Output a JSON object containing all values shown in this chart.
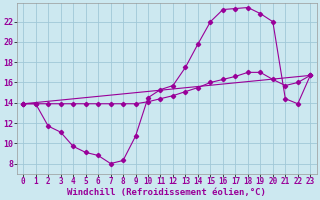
{
  "background_color": "#cce8f0",
  "grid_color": "#a0c8d8",
  "line_color": "#990099",
  "xlabel": "Windchill (Refroidissement éolien,°C)",
  "xlabel_fontsize": 6.5,
  "xtick_fontsize": 5.5,
  "ytick_fontsize": 6,
  "xlim": [
    -0.5,
    23.5
  ],
  "ylim": [
    7.0,
    23.8
  ],
  "yticks": [
    8,
    10,
    12,
    14,
    16,
    18,
    20,
    22
  ],
  "xticks": [
    0,
    1,
    2,
    3,
    4,
    5,
    6,
    7,
    8,
    9,
    10,
    11,
    12,
    13,
    14,
    15,
    16,
    17,
    18,
    19,
    20,
    21,
    22,
    23
  ],
  "line1_x": [
    0,
    1,
    2,
    3,
    4,
    5,
    6,
    7,
    8,
    9,
    10,
    11,
    12,
    13,
    14,
    15,
    16,
    17,
    18,
    19,
    20,
    21,
    22,
    23
  ],
  "line1_y": [
    13.9,
    13.9,
    11.7,
    11.1,
    9.7,
    9.1,
    8.8,
    8.0,
    8.3,
    10.7,
    14.5,
    15.3,
    15.7,
    17.5,
    19.8,
    22.0,
    23.2,
    23.3,
    23.4,
    22.8,
    22.0,
    14.4,
    13.9,
    16.7
  ],
  "line2_x": [
    0,
    1,
    2,
    3,
    4,
    5,
    6,
    7,
    8,
    9,
    10,
    11,
    12,
    13,
    14,
    15,
    16,
    17,
    18,
    19,
    20,
    21,
    22,
    23
  ],
  "line2_y": [
    13.9,
    13.9,
    13.9,
    13.9,
    13.9,
    13.9,
    13.9,
    13.9,
    13.9,
    13.9,
    14.1,
    14.4,
    14.7,
    15.1,
    15.5,
    16.0,
    16.3,
    16.6,
    17.0,
    17.0,
    16.3,
    15.7,
    16.0,
    16.7
  ],
  "line3_x": [
    0,
    23
  ],
  "line3_y": [
    13.9,
    16.7
  ]
}
